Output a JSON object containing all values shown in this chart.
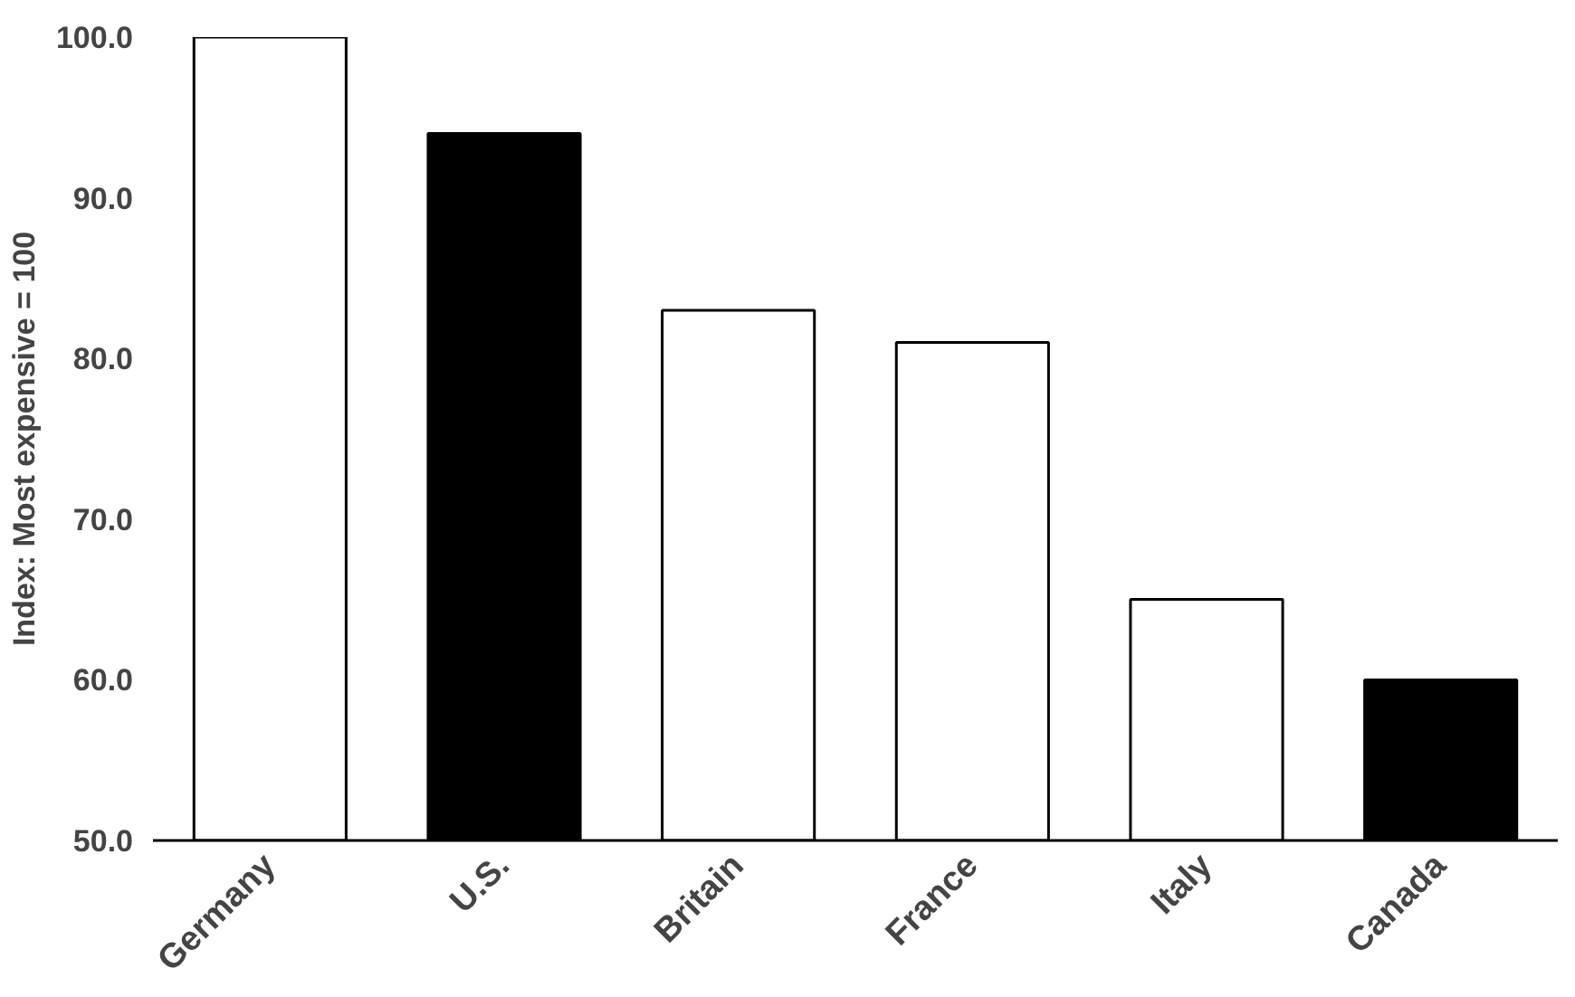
{
  "chart_data": {
    "type": "bar",
    "ylabel": "Index: Most expensive = 100",
    "categories": [
      "Germany",
      "U.S.",
      "Britain",
      "France",
      "Italy",
      "Canada"
    ],
    "values": [
      100,
      94,
      83,
      81,
      65,
      60
    ],
    "colors": [
      "#ffffff",
      "#000000",
      "#ffffff",
      "#ffffff",
      "#ffffff",
      "#000000"
    ],
    "ylim": [
      50,
      100
    ],
    "yticks": [
      {
        "value": 50,
        "label": "50.0"
      },
      {
        "value": 60,
        "label": "60.0"
      },
      {
        "value": 70,
        "label": "70.0"
      },
      {
        "value": 80,
        "label": "80.0"
      },
      {
        "value": 90,
        "label": "90.0"
      },
      {
        "value": 100,
        "label": "100.0"
      }
    ],
    "grid": false
  }
}
